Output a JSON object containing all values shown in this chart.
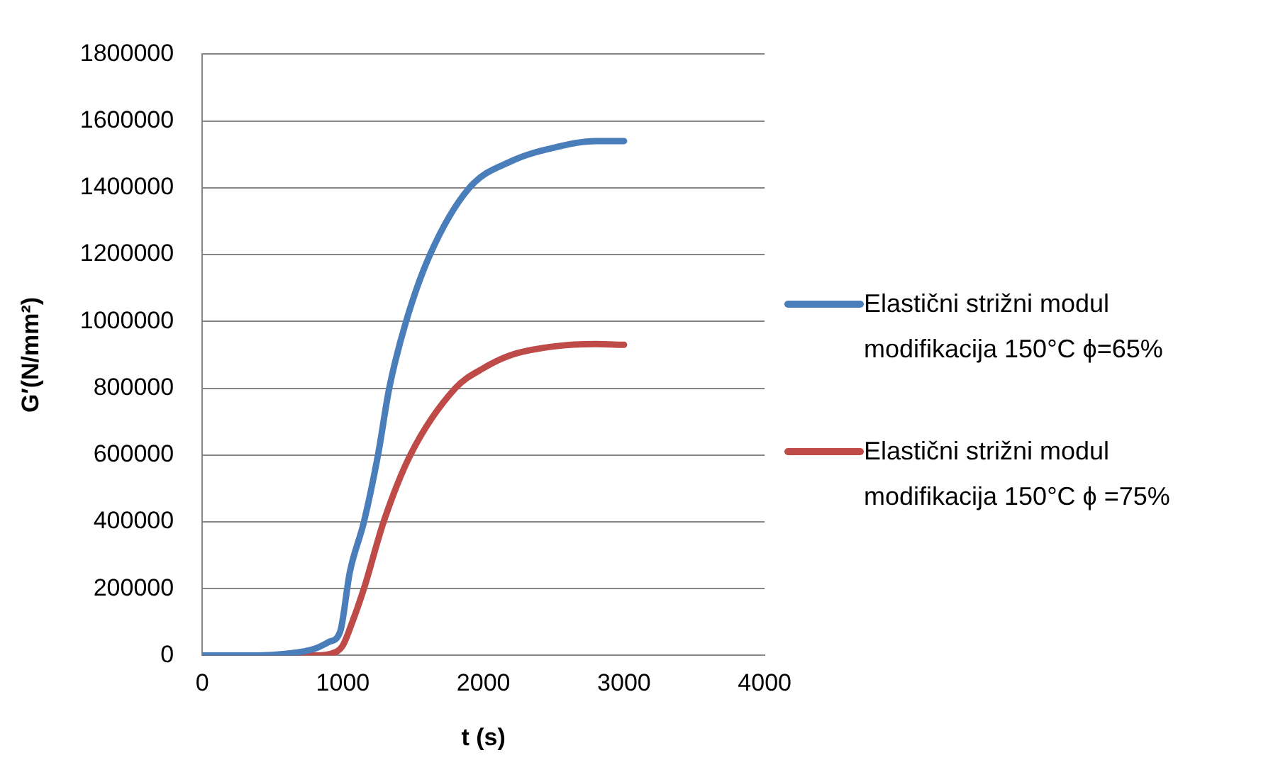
{
  "chart_data": {
    "type": "line",
    "xlabel": "t (s)",
    "ylabel": "G′(N/mm²)",
    "xlim": [
      0,
      4000
    ],
    "xticks": [
      0,
      1000,
      2000,
      3000,
      4000
    ],
    "ylim": [
      0,
      1800000
    ],
    "yticks": [
      0,
      200000,
      400000,
      600000,
      800000,
      1000000,
      1200000,
      1400000,
      1600000,
      1800000
    ],
    "grid": "y",
    "legend": "right",
    "marker": "none",
    "line_style": "solid",
    "series": [
      {
        "name": "Elastični strižni modul modifikacija 150°C ϕ=65%",
        "color": "#4a7ebb",
        "x": [
          0,
          400,
          600,
          800,
          900,
          980,
          1050,
          1150,
          1250,
          1330,
          1450,
          1620,
          1900,
          2200,
          2500,
          2800,
          3000
        ],
        "values": [
          0,
          0,
          5000,
          20000,
          40000,
          70000,
          250000,
          400000,
          600000,
          800000,
          1000000,
          1200000,
          1400000,
          1480000,
          1520000,
          1540000,
          1540000
        ]
      },
      {
        "name": "Elastični strižni modul modifikacija 150°C  ϕ =75%",
        "color": "#be4b48",
        "x": [
          0,
          800,
          950,
          1000,
          1050,
          1150,
          1290,
          1480,
          1800,
          2000,
          2200,
          2500,
          2800,
          3000
        ],
        "values": [
          0,
          0,
          10000,
          30000,
          80000,
          200000,
          400000,
          600000,
          800000,
          860000,
          900000,
          925000,
          932000,
          930000
        ]
      }
    ]
  }
}
